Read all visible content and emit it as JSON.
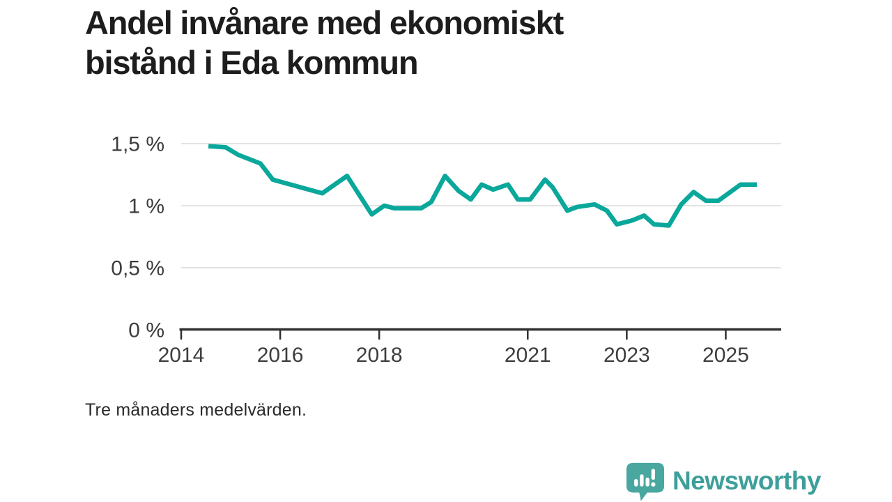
{
  "title": {
    "line1": "Andel invånare med ekonomiskt",
    "line2": "bistånd i Eda kommun",
    "full": "Andel invånare med ekonomiskt bistånd i Eda kommun"
  },
  "footnote": "Tre månaders medelvärden.",
  "branding": {
    "logo_text": "Newsworthy",
    "logo_icon": "bar-chart-speech-bubble-icon",
    "logo_text_color": "#3d9f9a",
    "logo_icon_color": "#4aa7a0"
  },
  "colors": {
    "line": "#0aa79b",
    "grid": "#e3e3e3",
    "axis": "#2f2f2f",
    "tick_label": "#3d3d3d",
    "title_text": "#1d1d1d"
  },
  "chart_data": {
    "type": "line",
    "title": "Andel invånare med ekonomiskt bistånd i Eda kommun",
    "note": "Tre månaders medelvärden.",
    "unit": "%",
    "decimal_separator": ",",
    "grid": "horizontal",
    "legend_position": "none",
    "xlim": [
      2014,
      2026.12
    ],
    "ylim": [
      0,
      1.5
    ],
    "yticks": [
      {
        "value": 0,
        "label": "0 %"
      },
      {
        "value": 0.5,
        "label": "0,5 %"
      },
      {
        "value": 1,
        "label": "1 %"
      },
      {
        "value": 1.5,
        "label": "1,5 %"
      }
    ],
    "xticks": [
      {
        "value": 2014,
        "label": "2014"
      },
      {
        "value": 2016,
        "label": "2016"
      },
      {
        "value": 2018,
        "label": "2018"
      },
      {
        "value": 2021,
        "label": "2021"
      },
      {
        "value": 2023,
        "label": "2023"
      },
      {
        "value": 2025,
        "label": "2025"
      }
    ],
    "series": [
      {
        "name": "Andel invånare med ekonomiskt bistånd",
        "color": "#0aa79b",
        "points": [
          [
            2014.55,
            1.48
          ],
          [
            2014.9,
            1.47
          ],
          [
            2015.15,
            1.41
          ],
          [
            2015.6,
            1.34
          ],
          [
            2015.85,
            1.21
          ],
          [
            2016.3,
            1.16
          ],
          [
            2016.85,
            1.1
          ],
          [
            2017.35,
            1.24
          ],
          [
            2017.85,
            0.93
          ],
          [
            2018.1,
            1.0
          ],
          [
            2018.3,
            0.98
          ],
          [
            2018.85,
            0.98
          ],
          [
            2019.05,
            1.03
          ],
          [
            2019.33,
            1.24
          ],
          [
            2019.6,
            1.12
          ],
          [
            2019.85,
            1.05
          ],
          [
            2020.07,
            1.17
          ],
          [
            2020.3,
            1.13
          ],
          [
            2020.6,
            1.17
          ],
          [
            2020.8,
            1.05
          ],
          [
            2021.05,
            1.05
          ],
          [
            2021.35,
            1.21
          ],
          [
            2021.5,
            1.15
          ],
          [
            2021.8,
            0.96
          ],
          [
            2022.0,
            0.99
          ],
          [
            2022.35,
            1.01
          ],
          [
            2022.6,
            0.96
          ],
          [
            2022.8,
            0.85
          ],
          [
            2023.1,
            0.88
          ],
          [
            2023.35,
            0.92
          ],
          [
            2023.55,
            0.85
          ],
          [
            2023.85,
            0.84
          ],
          [
            2024.1,
            1.01
          ],
          [
            2024.35,
            1.11
          ],
          [
            2024.6,
            1.04
          ],
          [
            2024.85,
            1.04
          ],
          [
            2025.3,
            1.17
          ],
          [
            2025.63,
            1.17
          ]
        ]
      }
    ]
  }
}
